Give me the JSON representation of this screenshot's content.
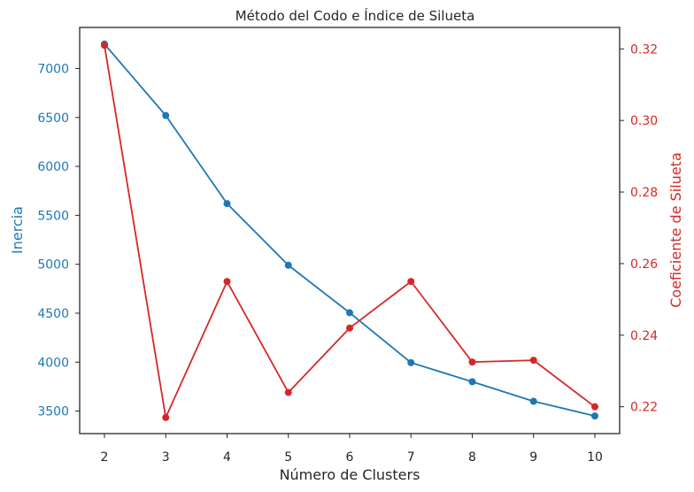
{
  "chart_data": {
    "type": "line",
    "title": "Método del Codo e Índice de Silueta",
    "xlabel": "Número de Clusters",
    "x": [
      2,
      3,
      4,
      5,
      6,
      7,
      8,
      9,
      10
    ],
    "x_ticks": [
      "2",
      "3",
      "4",
      "5",
      "6",
      "7",
      "8",
      "9",
      "10"
    ],
    "grid": false,
    "colors": {
      "inercia": "#1f77b4",
      "silueta": "#d62728",
      "frame": "#262626"
    },
    "series": [
      {
        "name": "Inercia",
        "axis": "left",
        "values": [
          7250,
          6520,
          5620,
          4990,
          4505,
          3995,
          3800,
          3600,
          3450
        ]
      },
      {
        "name": "Coeficiente de Silueta",
        "axis": "right",
        "values": [
          0.321,
          0.217,
          0.255,
          0.224,
          0.242,
          0.255,
          0.2325,
          0.233,
          0.22
        ]
      }
    ],
    "y_left": {
      "label": "Inercia",
      "ylim": [
        3270,
        7420
      ],
      "ticks": [
        "3500",
        "4000",
        "4500",
        "5000",
        "5500",
        "6000",
        "6500",
        "7000"
      ],
      "tick_values": [
        3500,
        4000,
        4500,
        5000,
        5500,
        6000,
        6500,
        7000
      ]
    },
    "y_right": {
      "label": "Coeficiente de Silueta",
      "ylim": [
        0.2125,
        0.326
      ],
      "ticks": [
        "0.22",
        "0.24",
        "0.26",
        "0.28",
        "0.30",
        "0.32"
      ],
      "tick_values": [
        0.22,
        0.24,
        0.26,
        0.28,
        0.3,
        0.32
      ]
    }
  }
}
